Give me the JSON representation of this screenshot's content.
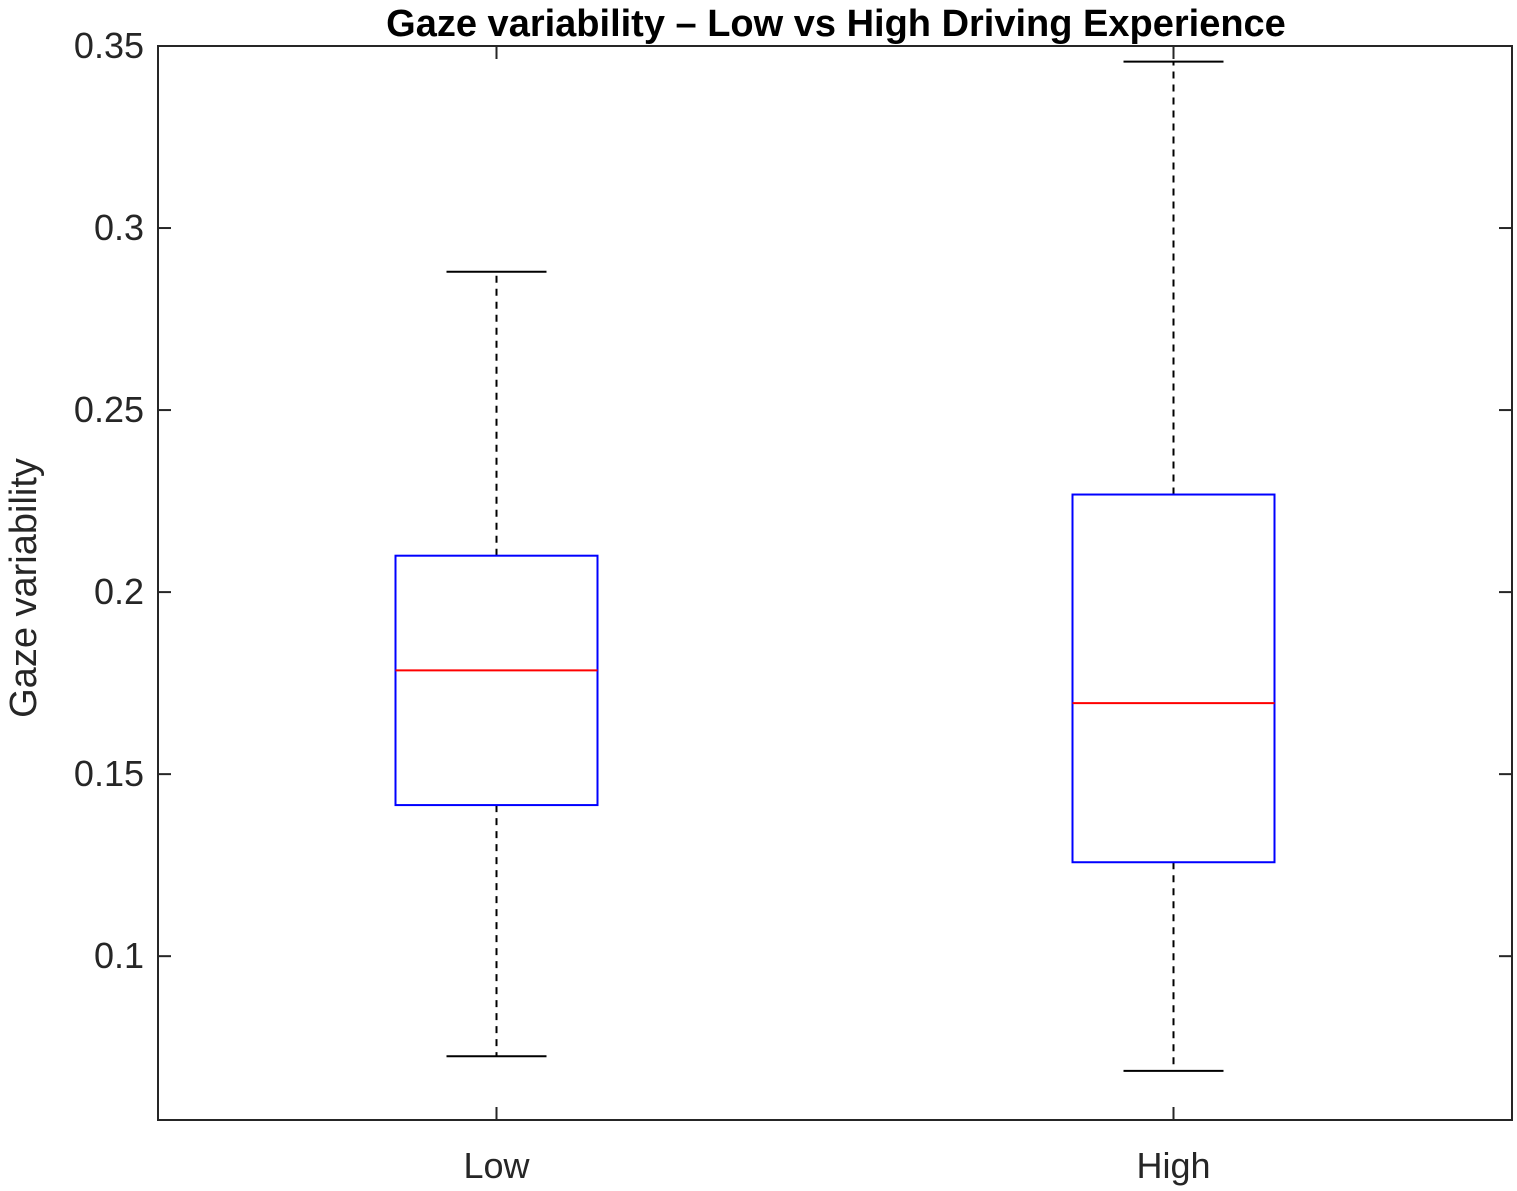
{
  "chart_data": {
    "type": "box",
    "title": "Gaze variability  – Low vs High Driving Experience",
    "xlabel": "",
    "ylabel": "Gaze variability",
    "ylim": [
      0.055,
      0.35
    ],
    "yticks": [
      0.1,
      0.15,
      0.2,
      0.25,
      0.3,
      0.35
    ],
    "ytick_labels": [
      "0.1",
      "0.15",
      "0.2",
      "0.25",
      "0.3",
      "0.35"
    ],
    "categories": [
      "Low",
      "High"
    ],
    "boxes": [
      {
        "category": "Low",
        "whisker_low": 0.0725,
        "q1": 0.1415,
        "median": 0.1785,
        "q3": 0.21,
        "whisker_high": 0.288
      },
      {
        "category": "High",
        "whisker_low": 0.0685,
        "q1": 0.1258,
        "median": 0.1695,
        "q3": 0.2268,
        "whisker_high": 0.3457
      }
    ],
    "grid": false,
    "colors": {
      "box": "#0000ff",
      "median": "#ff0000",
      "whisker": "#000000",
      "axes": "#262626"
    }
  }
}
